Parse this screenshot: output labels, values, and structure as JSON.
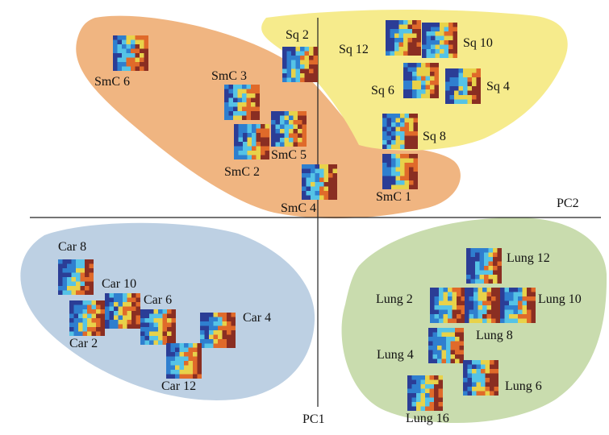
{
  "axes": {
    "horizontal_label": "PC2",
    "vertical_label": "PC1"
  },
  "groups": [
    {
      "id": "smc",
      "fill": "#f0b581"
    },
    {
      "id": "sq",
      "fill": "#f6eb8c"
    },
    {
      "id": "car",
      "fill": "#bdd0e3"
    },
    {
      "id": "lung",
      "fill": "#c9dcae"
    }
  ],
  "samples": [
    {
      "id": "smc-6",
      "label": "SmC 6",
      "group": "smc"
    },
    {
      "id": "smc-3",
      "label": "SmC 3",
      "group": "smc"
    },
    {
      "id": "smc-5",
      "label": "SmC 5",
      "group": "smc"
    },
    {
      "id": "smc-2",
      "label": "SmC 2",
      "group": "smc"
    },
    {
      "id": "smc-4",
      "label": "SmC 4",
      "group": "smc"
    },
    {
      "id": "smc-1",
      "label": "SmC 1",
      "group": "smc"
    },
    {
      "id": "sq-2",
      "label": "Sq 2",
      "group": "sq"
    },
    {
      "id": "sq-12",
      "label": "Sq 12",
      "group": "sq"
    },
    {
      "id": "sq-10",
      "label": "Sq 10",
      "group": "sq"
    },
    {
      "id": "sq-6",
      "label": "Sq 6",
      "group": "sq"
    },
    {
      "id": "sq-4",
      "label": "Sq 4",
      "group": "sq"
    },
    {
      "id": "sq-8",
      "label": "Sq 8",
      "group": "sq"
    },
    {
      "id": "car-8",
      "label": "Car 8",
      "group": "car"
    },
    {
      "id": "car-10",
      "label": "Car 10",
      "group": "car"
    },
    {
      "id": "car-6",
      "label": "Car 6",
      "group": "car"
    },
    {
      "id": "car-2",
      "label": "Car 2",
      "group": "car"
    },
    {
      "id": "car-4",
      "label": "Car 4",
      "group": "car"
    },
    {
      "id": "car-12",
      "label": "Car 12",
      "group": "car"
    },
    {
      "id": "lung-12",
      "label": "Lung 12",
      "group": "lung"
    },
    {
      "id": "lung-2",
      "label": "Lung 2",
      "group": "lung"
    },
    {
      "id": "lung-10",
      "label": "Lung 10",
      "group": "lung"
    },
    {
      "id": "lung-8",
      "label": "Lung 8",
      "group": "lung"
    },
    {
      "id": "lung-4",
      "label": "Lung 4",
      "group": "lung"
    },
    {
      "id": "lung-6",
      "label": "Lung 6",
      "group": "lung"
    },
    {
      "id": "lung-16",
      "label": "Lung 16",
      "group": "lung"
    }
  ],
  "heatmap_colors": [
    "#2b3d96",
    "#2f7fcf",
    "#55c3e6",
    "#e8d24a",
    "#e06a2a",
    "#8a2e22"
  ]
}
